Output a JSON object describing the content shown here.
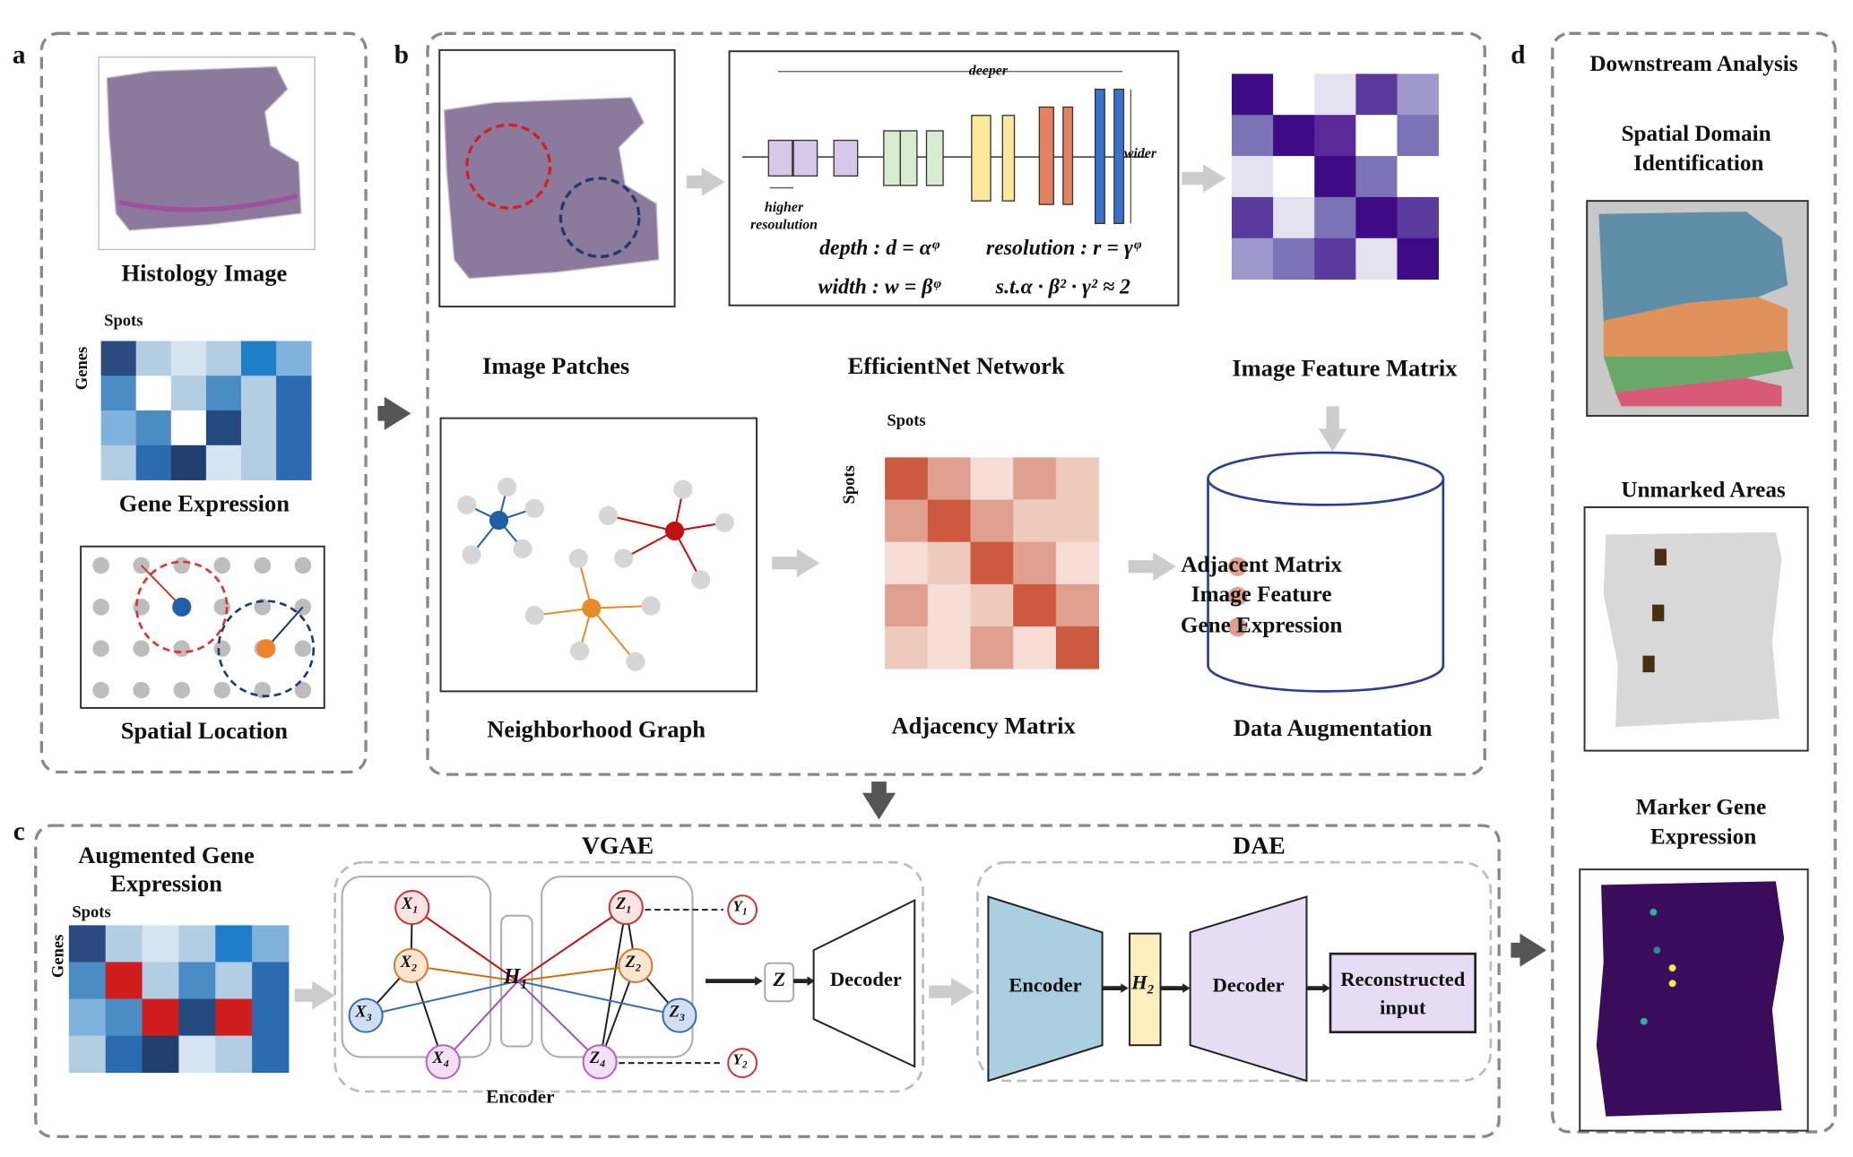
{
  "panel_labels": [
    "a",
    "b",
    "c",
    "d"
  ],
  "panel_a": {
    "histology_title": "Histology Image",
    "spots_label": "Spots",
    "genes_label": "Genes",
    "gene_expression_title": "Gene Expression",
    "spatial_location_title": "Spatial Location"
  },
  "panel_b": {
    "image_patches_title": "Image Patches",
    "network_title": "EfficientNet Network",
    "deeper_label": "deeper",
    "wider_label": "wider",
    "resolution_label": [
      "higher",
      "resoulution"
    ],
    "formulas": [
      "depth : d = αᵠ",
      "resolution : r = γᵠ",
      "width : w = βᵠ",
      "s.t.α · β² · γ² ≈ 2"
    ],
    "feature_matrix_title": "Image Feature Matrix",
    "adjacency_spots_top": "Spots",
    "adjacency_spots_left": "Spots",
    "neighborhood_graph_title": "Neighborhood Graph",
    "adjacency_matrix_title": "Adjacency Matrix",
    "data_augmentation_title": "Data Augmentation",
    "augmentation_items": [
      "Adjacent Matrix",
      "Image Feature",
      "Gene Expression"
    ]
  },
  "panel_c": {
    "input_title": [
      "Augmented Gene",
      "Expression"
    ],
    "spots_label": "Spots",
    "genes_label": "Genes",
    "vgae_title": "VGAE",
    "dae_title": "DAE",
    "vgae_encoder_label": "Encoder",
    "x_nodes": [
      {
        "symbol": "X",
        "sub": "1"
      },
      {
        "symbol": "X",
        "sub": "2"
      },
      {
        "symbol": "X",
        "sub": "3"
      },
      {
        "symbol": "X",
        "sub": "4"
      }
    ],
    "h1": {
      "symbol": "H",
      "sub": "1"
    },
    "z_nodes": [
      {
        "symbol": "Z",
        "sub": "1"
      },
      {
        "symbol": "Z",
        "sub": "2"
      },
      {
        "symbol": "Z",
        "sub": "3"
      },
      {
        "symbol": "Z",
        "sub": "4"
      }
    ],
    "y_nodes": [
      {
        "symbol": "Y",
        "sub": "1"
      },
      {
        "symbol": "Y",
        "sub": "2"
      }
    ],
    "z_label": "Z",
    "vgae_decoder_label": "Decoder",
    "dae_encoder_label": "Encoder",
    "h2": {
      "symbol": "H",
      "sub": "2"
    },
    "dae_decoder_label": "Decoder",
    "output_label": [
      "Reconstructed",
      "input"
    ]
  },
  "panel_d": {
    "title": "Downstream Analysis",
    "domain_title": [
      "Spatial Domain",
      "Identification"
    ],
    "unmarked_title": "Unmarked Areas",
    "marker_title": [
      "Marker Gene",
      "Expression"
    ]
  }
}
